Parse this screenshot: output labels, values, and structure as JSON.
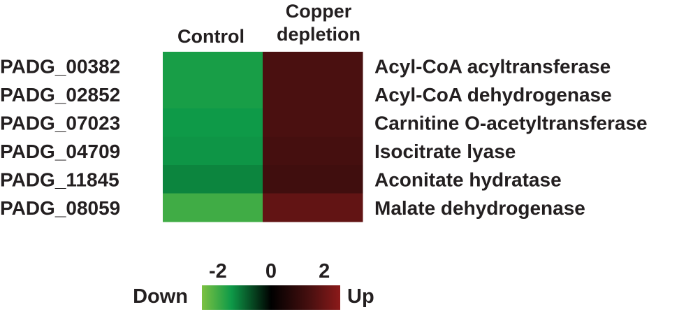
{
  "chart_data": {
    "type": "heatmap",
    "columns": [
      "Control",
      "Copper\ndepletion"
    ],
    "rows": [
      {
        "id": "PADG_00382",
        "annotation": "Acyl-CoA acyltransferase"
      },
      {
        "id": "PADG_02852",
        "annotation": "Acyl-CoA dehydrogenase"
      },
      {
        "id": "PADG_07023",
        "annotation": "Carnitine O-acetyltransferase"
      },
      {
        "id": "PADG_04709",
        "annotation": "Isocitrate lyase"
      },
      {
        "id": "PADG_11845",
        "annotation": "Aconitate hydratase"
      },
      {
        "id": "PADG_08059",
        "annotation": "Malate dehydrogenase"
      }
    ],
    "values": [
      [
        -1.6,
        1.5
      ],
      [
        -1.6,
        1.5
      ],
      [
        -1.5,
        1.5
      ],
      [
        -1.45,
        1.4
      ],
      [
        -1.3,
        1.3
      ],
      [
        -2.0,
        1.9
      ]
    ],
    "colorscale": {
      "min": -2.6,
      "max": 2.6,
      "stops": [
        {
          "value": -2.6,
          "color": "#7dc142"
        },
        {
          "value": -1.5,
          "color": "#0e9a48"
        },
        {
          "value": 0,
          "color": "#000000"
        },
        {
          "value": 1.5,
          "color": "#4a1010"
        },
        {
          "value": 2.6,
          "color": "#8c1a1a"
        }
      ],
      "ticks": [
        "-2",
        "0",
        "2"
      ],
      "tick_values": [
        -2,
        0,
        2
      ],
      "low_label": "Down",
      "high_label": "Up"
    }
  }
}
